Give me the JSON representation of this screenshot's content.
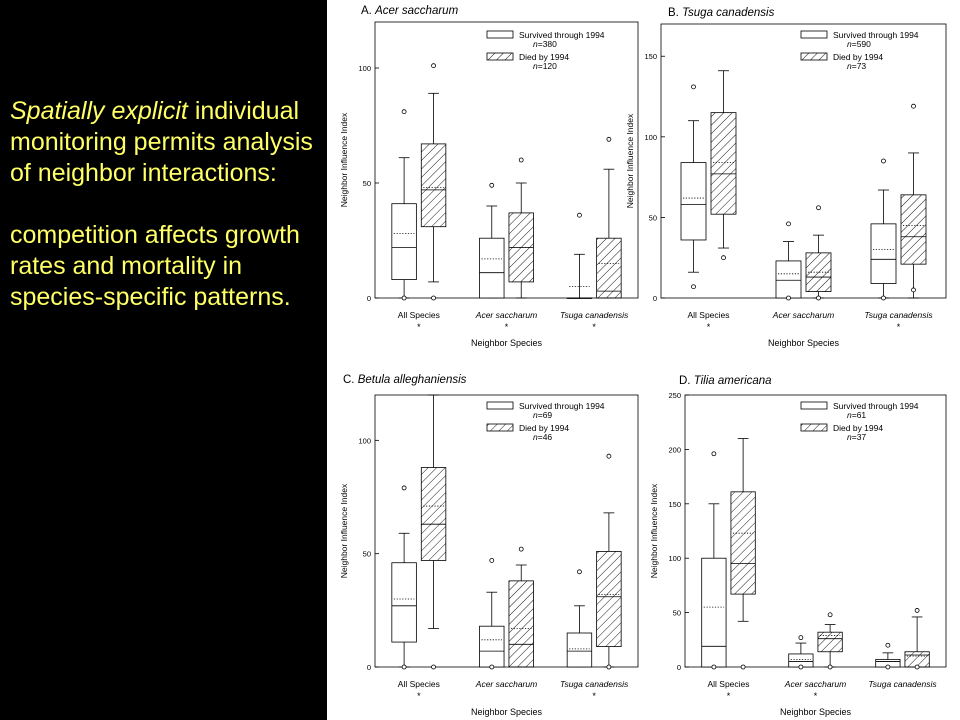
{
  "slide": {
    "line1_italic": "Spatially explicit",
    "line1_rest": "individual monitoring permits analysis of neighbor interactions:",
    "line2": "competition affects growth rates and mortality in species-specific patterns."
  },
  "colors": {
    "background": "#000000",
    "text": "#ffff66",
    "plot_bg": "#ffffff",
    "ink": "#000000"
  },
  "chart_data": [
    {
      "type": "box",
      "panel_label": "A.",
      "title": "Acer saccharum",
      "xlabel": "Neighbor Species",
      "ylabel": "Neighbor Influence Index",
      "ylim": [
        0,
        120
      ],
      "yticks": [
        0,
        50,
        100
      ],
      "categories": [
        "All Species",
        "Acer saccharum",
        "Tsuga canadensis"
      ],
      "category_italic": [
        false,
        true,
        true
      ],
      "significance": [
        "*",
        "*",
        "*"
      ],
      "legend": [
        {
          "label": "Survived through 1994",
          "n_label": "n=380",
          "hatched": false
        },
        {
          "label": "Died by 1994",
          "n_label": "n=120",
          "hatched": true
        }
      ],
      "boxes": [
        [
          {
            "wlo": 0,
            "q1": 8,
            "med": 22,
            "mean": 28,
            "q3": 41,
            "whi": 61,
            "outliers": [
              0,
              81
            ]
          },
          {
            "wlo": 7,
            "q1": 31,
            "med": 47,
            "mean": 48,
            "q3": 67,
            "whi": 89,
            "outliers": [
              0,
              101
            ]
          }
        ],
        [
          {
            "wlo": 0,
            "q1": 0,
            "med": 11,
            "mean": 17,
            "q3": 26,
            "whi": 40,
            "outliers": [
              49
            ]
          },
          {
            "wlo": 0,
            "q1": 7,
            "med": 22,
            "mean": 22,
            "q3": 37,
            "whi": 50,
            "outliers": [
              60
            ]
          }
        ],
        [
          {
            "wlo": 0,
            "q1": 0,
            "med": 0,
            "mean": 5,
            "q3": 0,
            "whi": 19,
            "outliers": [
              36
            ]
          },
          {
            "wlo": 0,
            "q1": 0,
            "med": 3,
            "mean": 15,
            "q3": 26,
            "whi": 56,
            "outliers": [
              69
            ]
          }
        ]
      ]
    },
    {
      "type": "box",
      "panel_label": "B.",
      "title": "Tsuga canadensis",
      "xlabel": "Neighbor Species",
      "ylabel": "Neighbor Influence Index",
      "ylim": [
        0,
        170
      ],
      "yticks": [
        0,
        50,
        100,
        150
      ],
      "categories": [
        "All Species",
        "Acer saccharum",
        "Tsuga canadensis"
      ],
      "category_italic": [
        false,
        true,
        true
      ],
      "significance": [
        "*",
        "",
        "*"
      ],
      "legend": [
        {
          "label": "Survived through 1994",
          "n_label": "n=590",
          "hatched": false
        },
        {
          "label": "Died by 1994",
          "n_label": "n=73",
          "hatched": true
        }
      ],
      "boxes": [
        [
          {
            "wlo": 16,
            "q1": 36,
            "med": 58,
            "mean": 62,
            "q3": 84,
            "whi": 110,
            "outliers": [
              7,
              131
            ]
          },
          {
            "wlo": 31,
            "q1": 52,
            "med": 77,
            "mean": 84,
            "q3": 115,
            "whi": 141,
            "outliers": [
              25
            ]
          }
        ],
        [
          {
            "wlo": 0,
            "q1": 0,
            "med": 11,
            "mean": 15,
            "q3": 23,
            "whi": 35,
            "outliers": [
              0,
              46
            ]
          },
          {
            "wlo": 0,
            "q1": 4,
            "med": 13,
            "mean": 16,
            "q3": 28,
            "whi": 39,
            "outliers": [
              0,
              56
            ]
          }
        ],
        [
          {
            "wlo": 0,
            "q1": 9,
            "med": 24,
            "mean": 30,
            "q3": 46,
            "whi": 67,
            "outliers": [
              0,
              85
            ]
          },
          {
            "wlo": 0,
            "q1": 21,
            "med": 38,
            "mean": 45,
            "q3": 64,
            "whi": 90,
            "outliers": [
              5,
              119
            ]
          }
        ]
      ]
    },
    {
      "type": "box",
      "panel_label": "C.",
      "title": "Betula alleghaniensis",
      "xlabel": "Neighbor Species",
      "ylabel": "Neighbor Influence Index",
      "ylim": [
        0,
        120
      ],
      "yticks": [
        0,
        50,
        100
      ],
      "categories": [
        "All Species",
        "Acer saccharum",
        "Tsuga canadensis"
      ],
      "category_italic": [
        false,
        true,
        true
      ],
      "significance": [
        "*",
        "",
        "*"
      ],
      "legend": [
        {
          "label": "Survived through 1994",
          "n_label": "n=69",
          "hatched": false
        },
        {
          "label": "Died by 1994",
          "n_label": "n=46",
          "hatched": true
        }
      ],
      "boxes": [
        [
          {
            "wlo": 0,
            "q1": 11,
            "med": 27,
            "mean": 30,
            "q3": 46,
            "whi": 59,
            "outliers": [
              0,
              79
            ]
          },
          {
            "wlo": 17,
            "q1": 47,
            "med": 63,
            "mean": 71,
            "q3": 88,
            "whi": 120,
            "outliers": [
              0
            ]
          }
        ],
        [
          {
            "wlo": 0,
            "q1": 0,
            "med": 7,
            "mean": 12,
            "q3": 18,
            "whi": 33,
            "outliers": [
              0,
              47
            ]
          },
          {
            "wlo": 0,
            "q1": 0,
            "med": 10,
            "mean": 17,
            "q3": 38,
            "whi": 45,
            "outliers": [
              52
            ]
          }
        ],
        [
          {
            "wlo": 0,
            "q1": 0,
            "med": 7,
            "mean": 8,
            "q3": 15,
            "whi": 27,
            "outliers": [
              42
            ]
          },
          {
            "wlo": 0,
            "q1": 9,
            "med": 31,
            "mean": 32,
            "q3": 51,
            "whi": 68,
            "outliers": [
              0,
              93
            ]
          }
        ]
      ]
    },
    {
      "type": "box",
      "panel_label": "D.",
      "title": "Tilia americana",
      "xlabel": "Neighbor Species",
      "ylabel": "Neighbor Influence Index",
      "ylim": [
        0,
        250
      ],
      "yticks": [
        0,
        50,
        100,
        150,
        200,
        250
      ],
      "categories": [
        "All Species",
        "Acer saccharum",
        "Tsuga canadensis"
      ],
      "category_italic": [
        false,
        true,
        true
      ],
      "significance": [
        "*",
        "*",
        ""
      ],
      "legend": [
        {
          "label": "Survived through 1994",
          "n_label": "n=61",
          "hatched": false
        },
        {
          "label": "Died by 1994",
          "n_label": "n=37",
          "hatched": true
        }
      ],
      "boxes": [
        [
          {
            "wlo": 0,
            "q1": 0,
            "med": 19,
            "mean": 55,
            "q3": 100,
            "whi": 150,
            "outliers": [
              0,
              196
            ]
          },
          {
            "wlo": 42,
            "q1": 67,
            "med": 95,
            "mean": 123,
            "q3": 161,
            "whi": 210,
            "outliers": [
              0
            ]
          }
        ],
        [
          {
            "wlo": 0,
            "q1": 0,
            "med": 5,
            "mean": 7,
            "q3": 12,
            "whi": 22,
            "outliers": [
              0,
              27
            ]
          },
          {
            "wlo": 0,
            "q1": 14,
            "med": 26,
            "mean": 29,
            "q3": 32,
            "whi": 39,
            "outliers": [
              0,
              48
            ]
          }
        ],
        [
          {
            "wlo": 0,
            "q1": 0,
            "med": 5,
            "mean": 5,
            "q3": 7,
            "whi": 13,
            "outliers": [
              0,
              20
            ]
          },
          {
            "wlo": 0,
            "q1": 0,
            "med": 11,
            "mean": 10,
            "q3": 14,
            "whi": 46,
            "outliers": [
              0,
              52
            ]
          }
        ]
      ]
    }
  ]
}
